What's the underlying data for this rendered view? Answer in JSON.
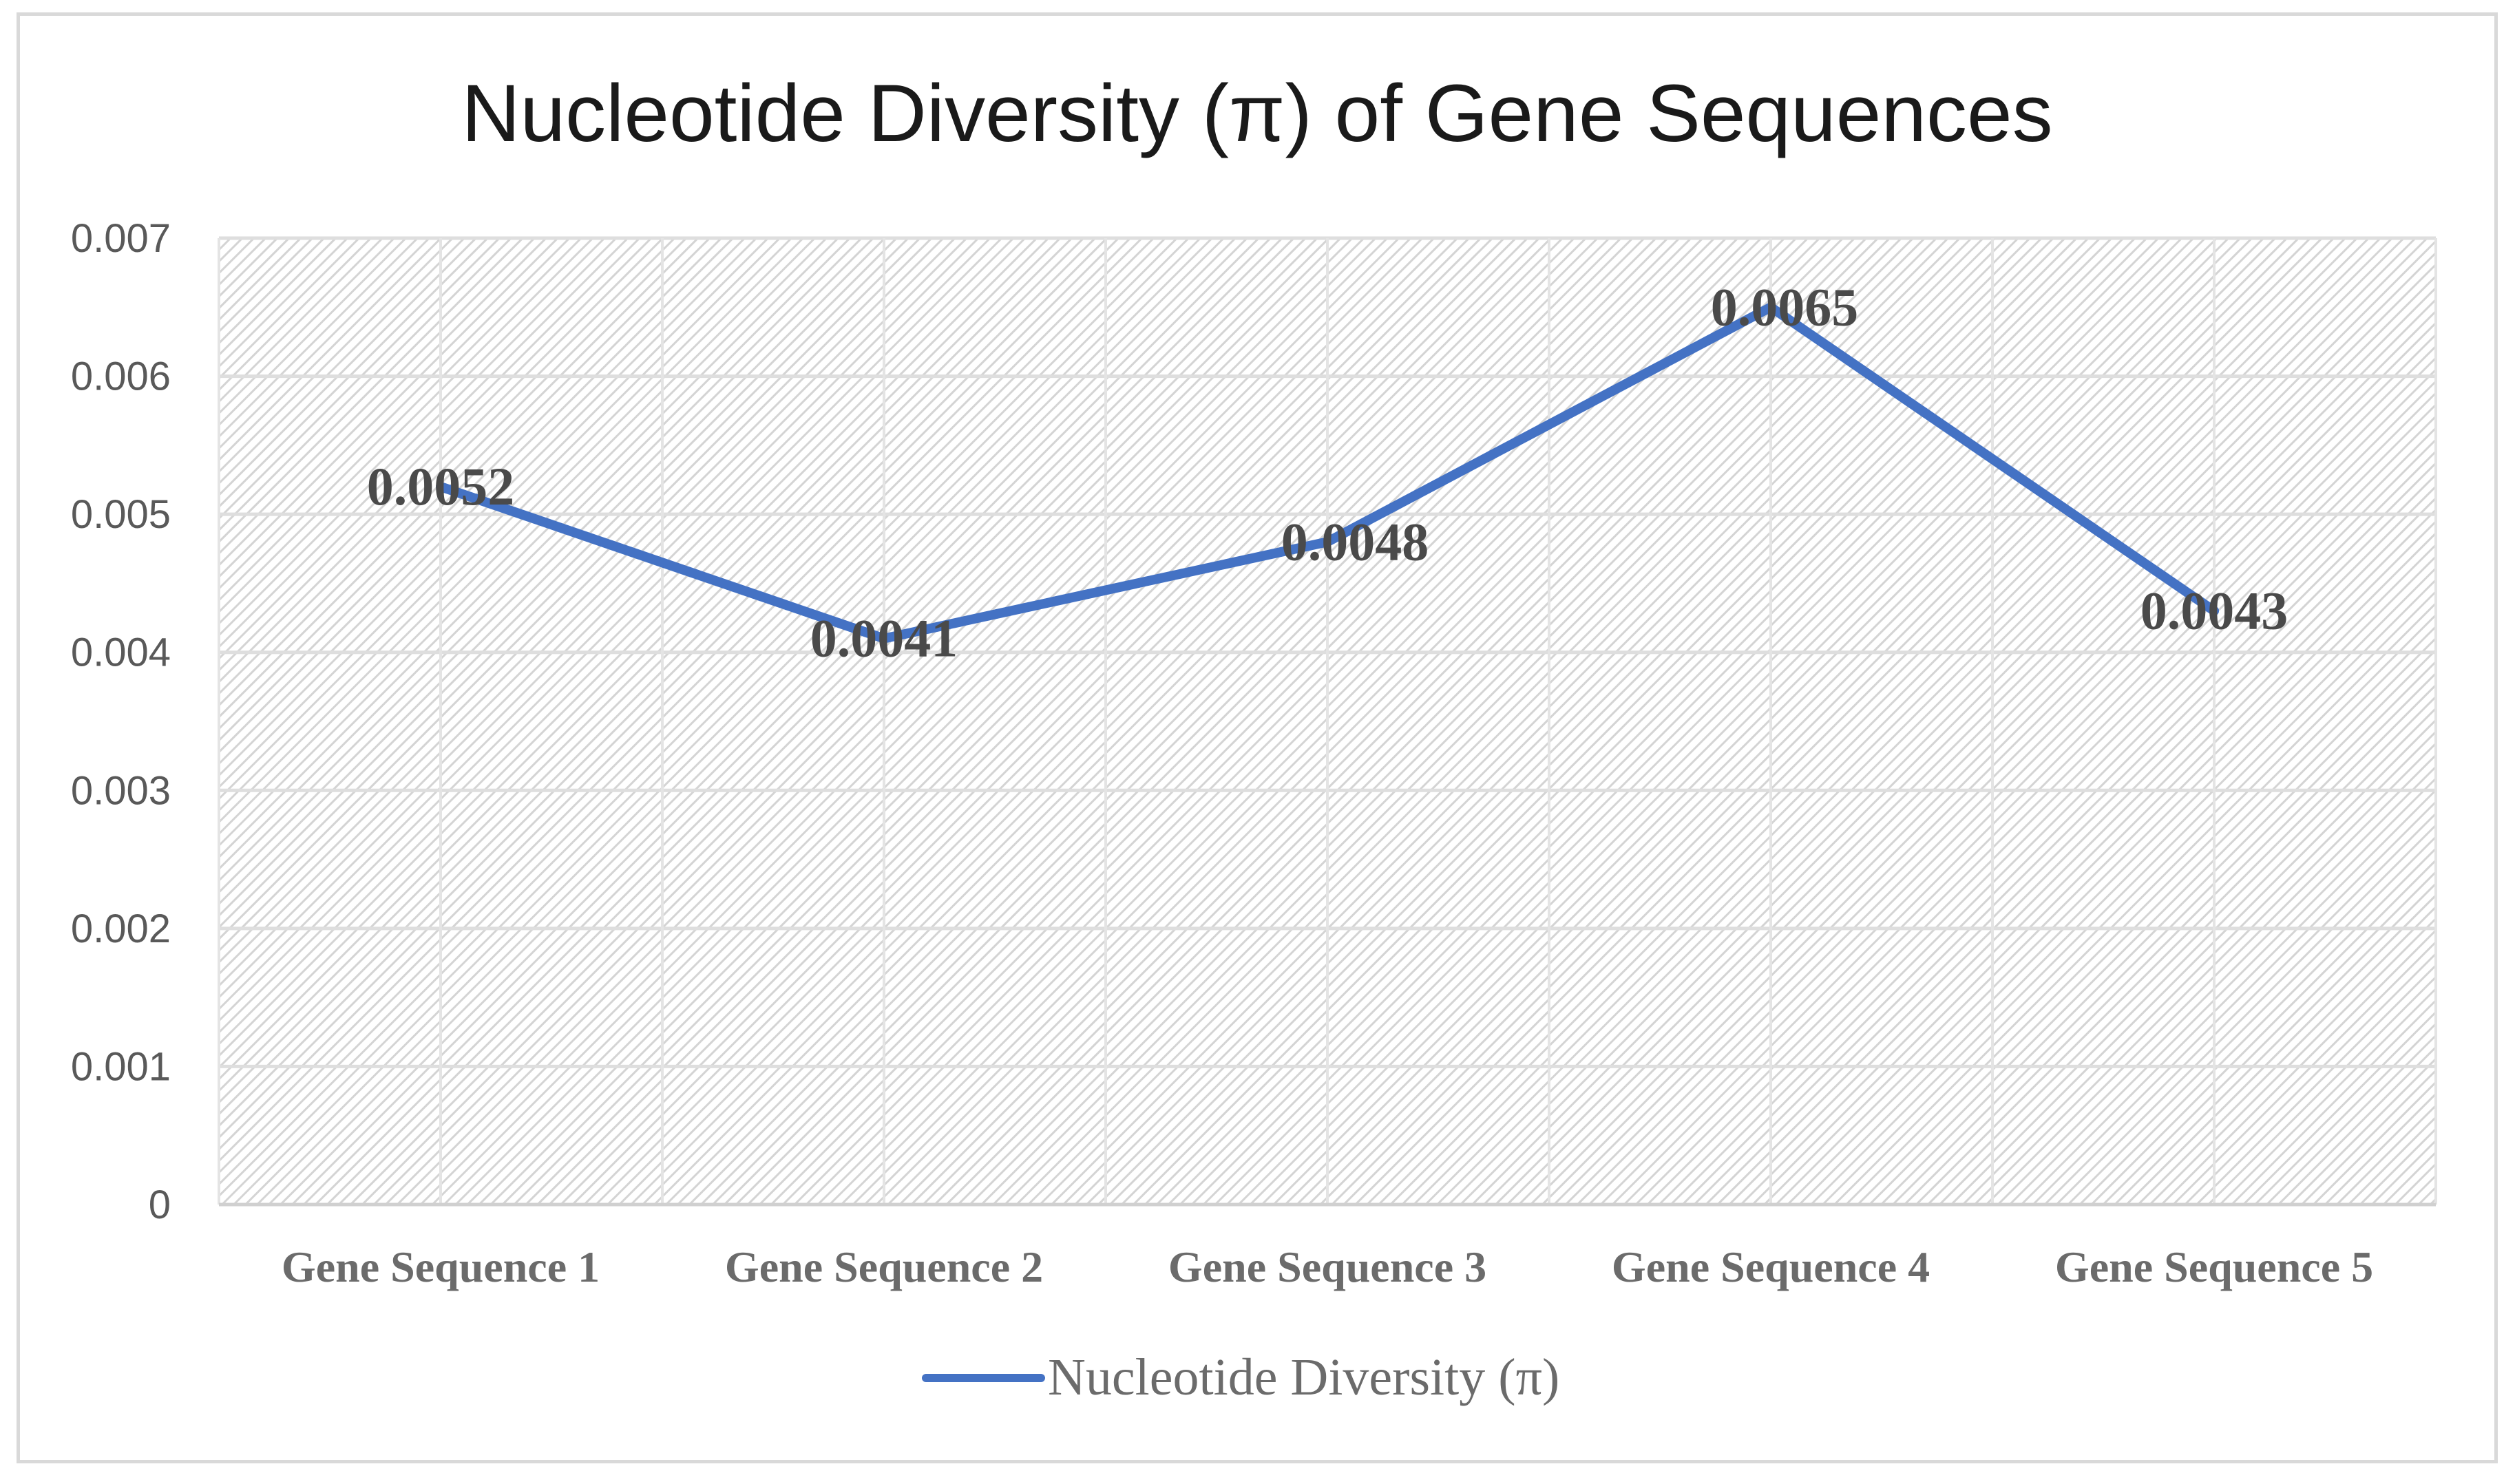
{
  "chart_data": {
    "type": "line",
    "title": "Nucleotide Diversity (π) of Gene Sequences",
    "xlabel": "",
    "ylabel": "",
    "categories": [
      "Gene Sequence 1",
      "Gene Sequence 2",
      "Gene Sequence 3",
      "Gene Sequence 4",
      "Gene Sequence 5"
    ],
    "series": [
      {
        "name": "Nucleotide Diversity (π)",
        "values": [
          0.0052,
          0.0041,
          0.0048,
          0.0065,
          0.0043
        ],
        "data_labels": [
          "0.0052",
          "0.0041",
          "0.0048",
          "0.0065",
          "0.0043"
        ],
        "color": "#4472c4"
      }
    ],
    "ylim": [
      0,
      0.007
    ],
    "yticks": [
      0,
      0.001,
      0.002,
      0.003,
      0.004,
      0.005,
      0.006,
      0.007
    ],
    "ytick_labels": [
      "0",
      "0.001",
      "0.002",
      "0.003",
      "0.004",
      "0.005",
      "0.006",
      "0.007"
    ],
    "grid": true,
    "plot_background": "hatched",
    "legend_position": "bottom"
  }
}
